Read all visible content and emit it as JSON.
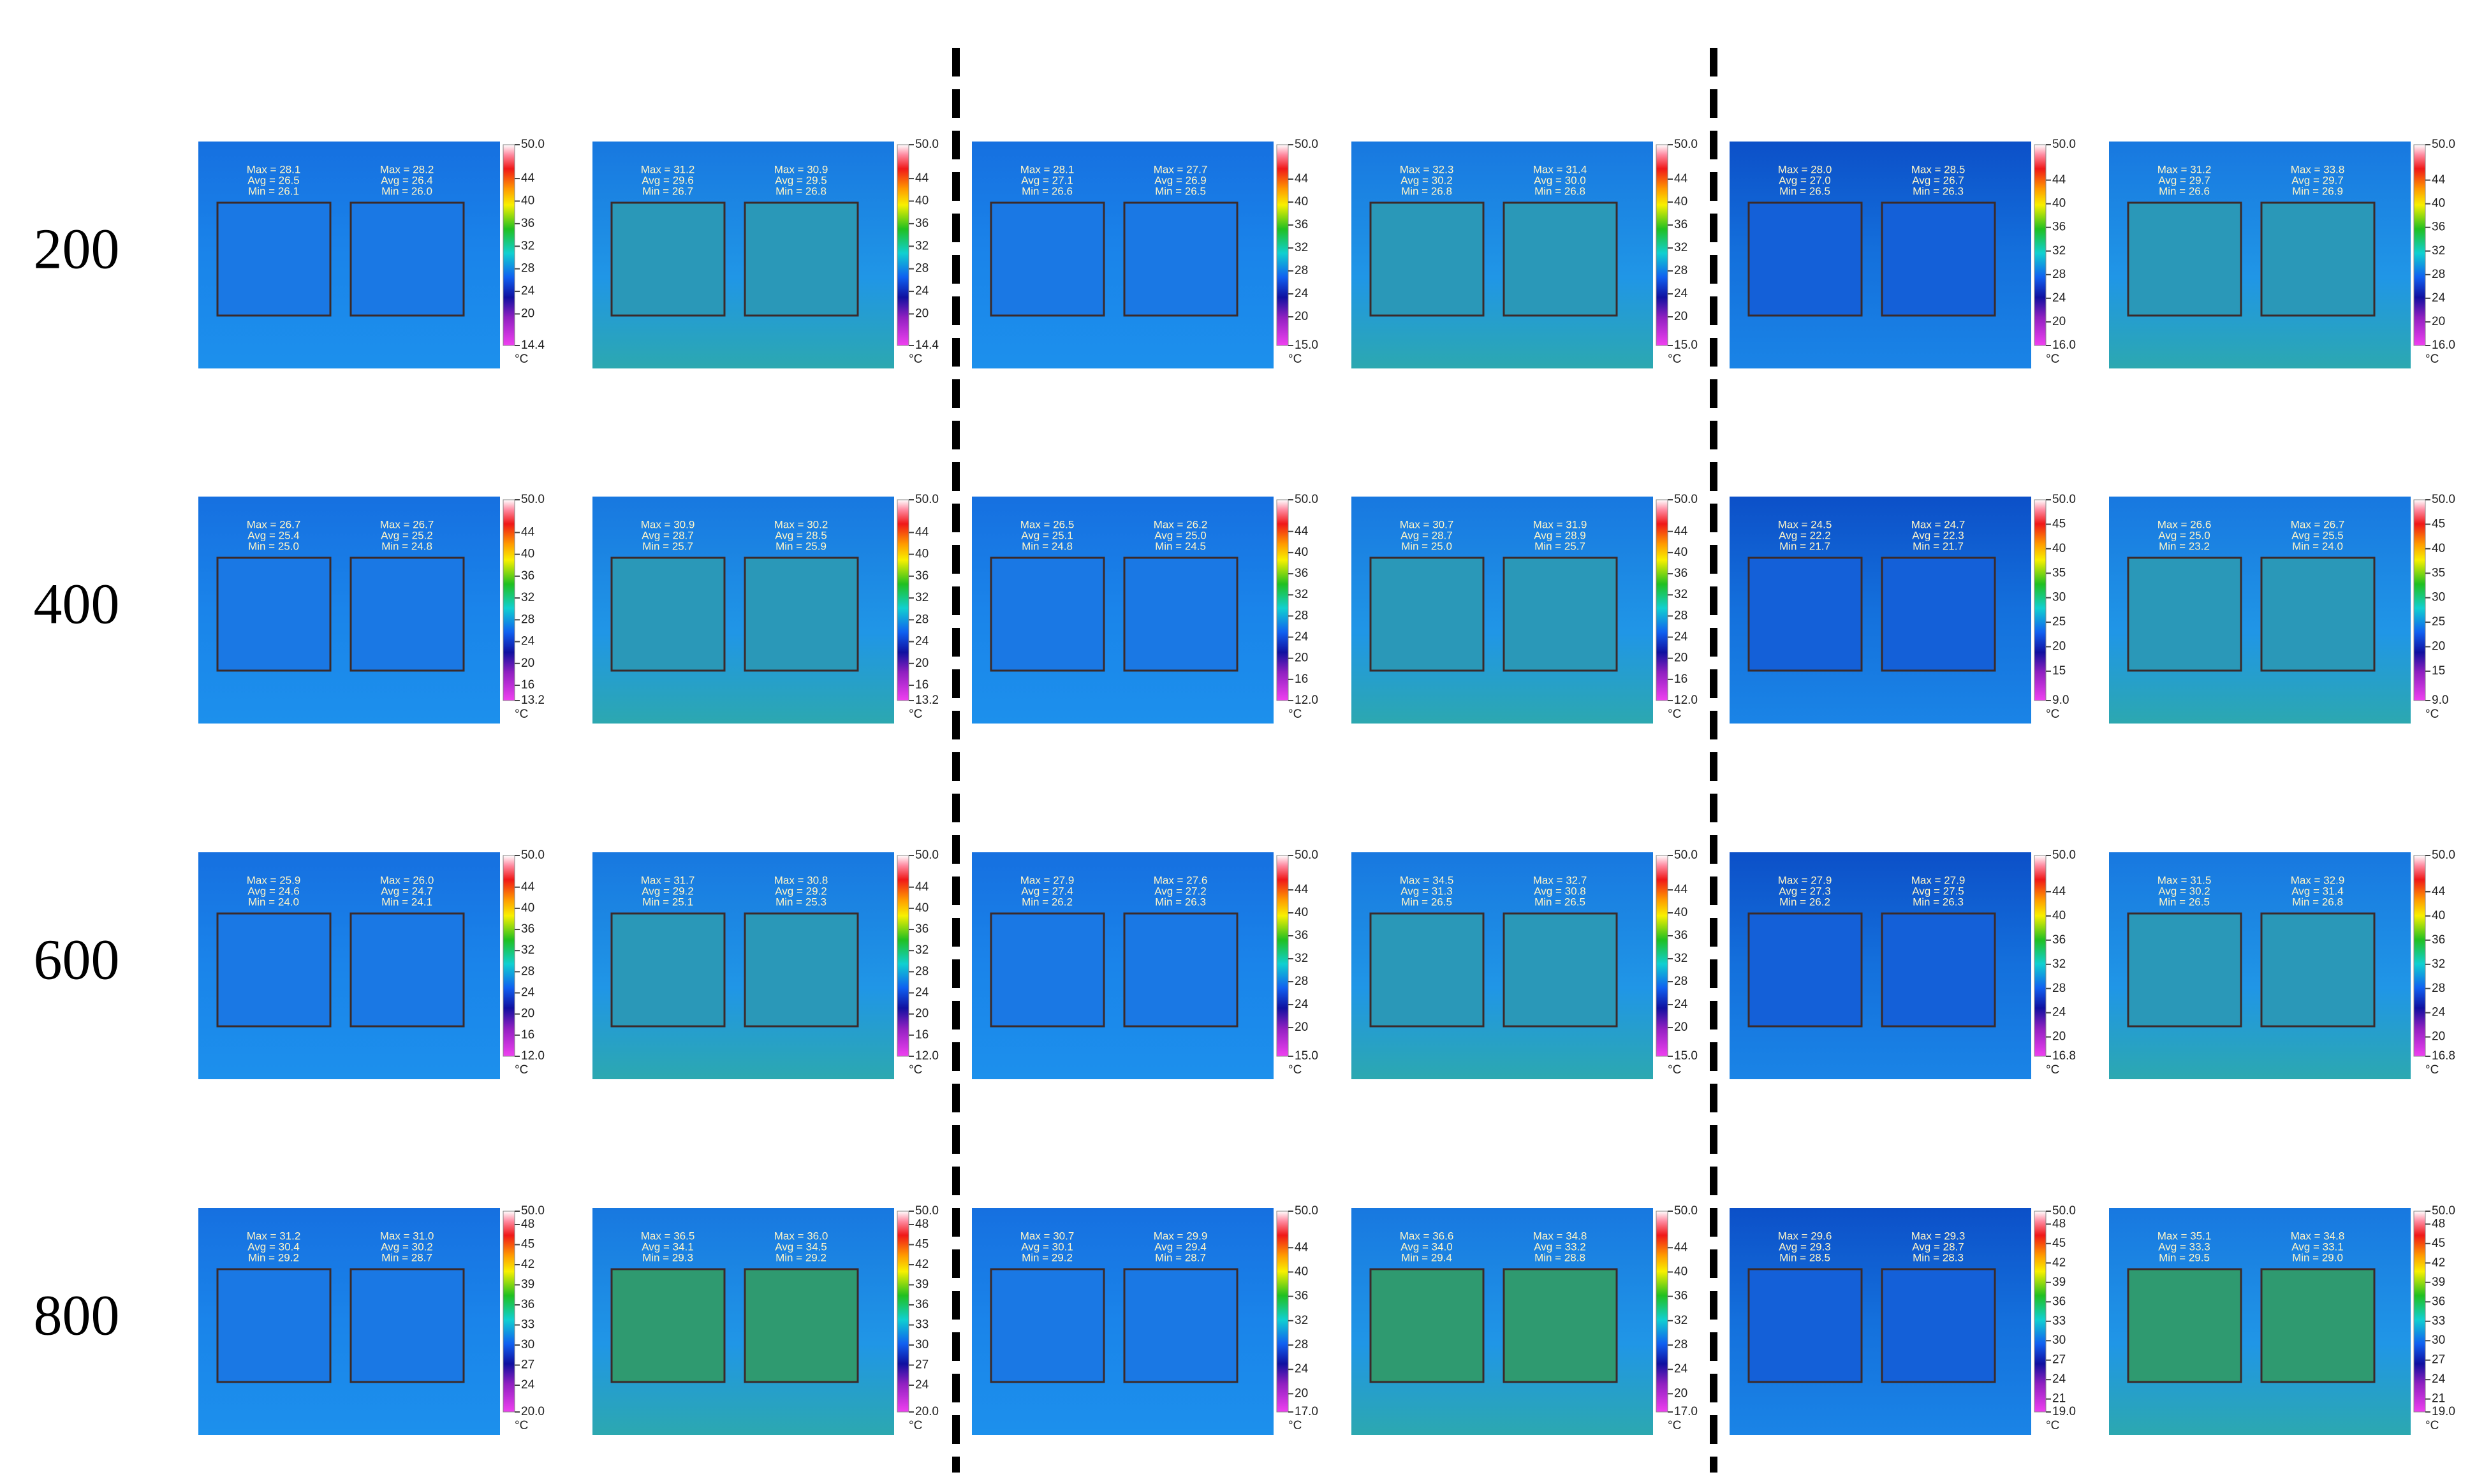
{
  "rows": [
    {
      "label": "200",
      "panels": [
        {
          "boxes": [
            [
              "Max = 28.1",
              "Avg = 26.5",
              "Min = 26.1"
            ],
            [
              "Max = 28.2",
              "Avg = 26.4",
              "Min = 26.0"
            ]
          ],
          "scale": [
            "50.0",
            "44",
            "40",
            "36",
            "32",
            "28",
            "24",
            "20",
            "14.4"
          ],
          "unit": "°C"
        },
        {
          "boxes": [
            [
              "Max = 31.2",
              "Avg = 29.6",
              "Min = 26.7"
            ],
            [
              "Max = 30.9",
              "Avg = 29.5",
              "Min = 26.8"
            ]
          ],
          "scale": [
            "50.0",
            "44",
            "40",
            "36",
            "32",
            "28",
            "24",
            "20",
            "14.4"
          ],
          "unit": "°C"
        },
        {
          "boxes": [
            [
              "Max = 28.1",
              "Avg = 27.1",
              "Min = 26.6"
            ],
            [
              "Max = 27.7",
              "Avg = 26.9",
              "Min = 26.5"
            ]
          ],
          "scale": [
            "50.0",
            "44",
            "40",
            "36",
            "32",
            "28",
            "24",
            "20",
            "15.0"
          ],
          "unit": "°C"
        },
        {
          "boxes": [
            [
              "Max = 32.3",
              "Avg = 30.2",
              "Min = 26.8"
            ],
            [
              "Max = 31.4",
              "Avg = 30.0",
              "Min = 26.8"
            ]
          ],
          "scale": [
            "50.0",
            "44",
            "40",
            "36",
            "32",
            "28",
            "24",
            "20",
            "15.0"
          ],
          "unit": "°C"
        },
        {
          "boxes": [
            [
              "Max = 28.0",
              "Avg = 27.0",
              "Min = 26.5"
            ],
            [
              "Max = 28.5",
              "Avg = 26.7",
              "Min = 26.3"
            ]
          ],
          "scale": [
            "50.0",
            "44",
            "40",
            "36",
            "32",
            "28",
            "24",
            "20",
            "16.0"
          ],
          "unit": "°C"
        },
        {
          "boxes": [
            [
              "Max = 31.2",
              "Avg = 29.7",
              "Min = 26.6"
            ],
            [
              "Max = 33.8",
              "Avg = 29.7",
              "Min = 26.9"
            ]
          ],
          "scale": [
            "50.0",
            "44",
            "40",
            "36",
            "32",
            "28",
            "24",
            "20",
            "16.0"
          ],
          "unit": "°C"
        }
      ]
    },
    {
      "label": "400",
      "panels": [
        {
          "boxes": [
            [
              "Max = 26.7",
              "Avg = 25.4",
              "Min = 25.0"
            ],
            [
              "Max = 26.7",
              "Avg = 25.2",
              "Min = 24.8"
            ]
          ],
          "scale": [
            "50.0",
            "44",
            "40",
            "36",
            "32",
            "28",
            "24",
            "20",
            "16",
            "13.2"
          ],
          "unit": "°C"
        },
        {
          "boxes": [
            [
              "Max = 30.9",
              "Avg = 28.7",
              "Min = 25.7"
            ],
            [
              "Max = 30.2",
              "Avg = 28.5",
              "Min = 25.9"
            ]
          ],
          "scale": [
            "50.0",
            "44",
            "40",
            "36",
            "32",
            "28",
            "24",
            "20",
            "16",
            "13.2"
          ],
          "unit": "°C"
        },
        {
          "boxes": [
            [
              "Max = 26.5",
              "Avg = 25.1",
              "Min = 24.8"
            ],
            [
              "Max = 26.2",
              "Avg = 25.0",
              "Min = 24.5"
            ]
          ],
          "scale": [
            "50.0",
            "44",
            "40",
            "36",
            "32",
            "28",
            "24",
            "20",
            "16",
            "12.0"
          ],
          "unit": "°C"
        },
        {
          "boxes": [
            [
              "Max = 30.7",
              "Avg = 28.7",
              "Min = 25.0"
            ],
            [
              "Max = 31.9",
              "Avg = 28.9",
              "Min = 25.7"
            ]
          ],
          "scale": [
            "50.0",
            "44",
            "40",
            "36",
            "32",
            "28",
            "24",
            "20",
            "16",
            "12.0"
          ],
          "unit": "°C"
        },
        {
          "boxes": [
            [
              "Max = 24.5",
              "Avg = 22.2",
              "Min = 21.7"
            ],
            [
              "Max = 24.7",
              "Avg = 22.3",
              "Min = 21.7"
            ]
          ],
          "scale": [
            "50.0",
            "45",
            "40",
            "35",
            "30",
            "25",
            "20",
            "15",
            "9.0"
          ],
          "unit": "°C"
        },
        {
          "boxes": [
            [
              "Max = 26.6",
              "Avg = 25.0",
              "Min = 23.2"
            ],
            [
              "Max = 26.7",
              "Avg = 25.5",
              "Min = 24.0"
            ]
          ],
          "scale": [
            "50.0",
            "45",
            "40",
            "35",
            "30",
            "25",
            "20",
            "15",
            "9.0"
          ],
          "unit": "°C"
        }
      ]
    },
    {
      "label": "600",
      "panels": [
        {
          "boxes": [
            [
              "Max = 25.9",
              "Avg = 24.6",
              "Min = 24.0"
            ],
            [
              "Max = 26.0",
              "Avg = 24.7",
              "Min = 24.1"
            ]
          ],
          "scale": [
            "50.0",
            "44",
            "40",
            "36",
            "32",
            "28",
            "24",
            "20",
            "16",
            "12.0"
          ],
          "unit": "°C"
        },
        {
          "boxes": [
            [
              "Max = 31.7",
              "Avg = 29.2",
              "Min = 25.1"
            ],
            [
              "Max = 30.8",
              "Avg = 29.2",
              "Min = 25.3"
            ]
          ],
          "scale": [
            "50.0",
            "44",
            "40",
            "36",
            "32",
            "28",
            "24",
            "20",
            "16",
            "12.0"
          ],
          "unit": "°C"
        },
        {
          "boxes": [
            [
              "Max = 27.9",
              "Avg = 27.4",
              "Min = 26.2"
            ],
            [
              "Max = 27.6",
              "Avg = 27.2",
              "Min = 26.3"
            ]
          ],
          "scale": [
            "50.0",
            "44",
            "40",
            "36",
            "32",
            "28",
            "24",
            "20",
            "15.0"
          ],
          "unit": "°C"
        },
        {
          "boxes": [
            [
              "Max = 34.5",
              "Avg = 31.3",
              "Min = 26.5"
            ],
            [
              "Max = 32.7",
              "Avg = 30.8",
              "Min = 26.5"
            ]
          ],
          "scale": [
            "50.0",
            "44",
            "40",
            "36",
            "32",
            "28",
            "24",
            "20",
            "15.0"
          ],
          "unit": "°C"
        },
        {
          "boxes": [
            [
              "Max = 27.9",
              "Avg = 27.3",
              "Min = 26.2"
            ],
            [
              "Max = 27.9",
              "Avg = 27.5",
              "Min = 26.3"
            ]
          ],
          "scale": [
            "50.0",
            "44",
            "40",
            "36",
            "32",
            "28",
            "24",
            "20",
            "16.8"
          ],
          "unit": "°C"
        },
        {
          "boxes": [
            [
              "Max = 31.5",
              "Avg = 30.2",
              "Min = 26.5"
            ],
            [
              "Max = 32.9",
              "Avg = 31.4",
              "Min = 26.8"
            ]
          ],
          "scale": [
            "50.0",
            "44",
            "40",
            "36",
            "32",
            "28",
            "24",
            "20",
            "16.8"
          ],
          "unit": "°C"
        }
      ]
    },
    {
      "label": "800",
      "panels": [
        {
          "boxes": [
            [
              "Max = 31.2",
              "Avg = 30.4",
              "Min = 29.2"
            ],
            [
              "Max = 31.0",
              "Avg = 30.2",
              "Min = 28.7"
            ]
          ],
          "scale": [
            "50.0",
            "48",
            "45",
            "42",
            "39",
            "36",
            "33",
            "30",
            "27",
            "24",
            "20.0"
          ],
          "unit": "°C"
        },
        {
          "boxes": [
            [
              "Max = 36.5",
              "Avg = 34.1",
              "Min = 29.3"
            ],
            [
              "Max = 36.0",
              "Avg = 34.5",
              "Min = 29.2"
            ]
          ],
          "scale": [
            "50.0",
            "48",
            "45",
            "42",
            "39",
            "36",
            "33",
            "30",
            "27",
            "24",
            "20.0"
          ],
          "unit": "°C"
        },
        {
          "boxes": [
            [
              "Max = 30.7",
              "Avg = 30.1",
              "Min = 29.2"
            ],
            [
              "Max = 29.9",
              "Avg = 29.4",
              "Min = 28.7"
            ]
          ],
          "scale": [
            "50.0",
            "44",
            "40",
            "36",
            "32",
            "28",
            "24",
            "20",
            "17.0"
          ],
          "unit": "°C"
        },
        {
          "boxes": [
            [
              "Max = 36.6",
              "Avg = 34.0",
              "Min = 29.4"
            ],
            [
              "Max = 34.8",
              "Avg = 33.2",
              "Min = 28.8"
            ]
          ],
          "scale": [
            "50.0",
            "44",
            "40",
            "36",
            "32",
            "28",
            "24",
            "20",
            "17.0"
          ],
          "unit": "°C"
        },
        {
          "boxes": [
            [
              "Max = 29.6",
              "Avg = 29.3",
              "Min = 28.5"
            ],
            [
              "Max = 29.3",
              "Avg = 28.7",
              "Min = 28.3"
            ]
          ],
          "scale": [
            "50.0",
            "48",
            "45",
            "42",
            "39",
            "36",
            "33",
            "30",
            "27",
            "24",
            "21",
            "19.0"
          ],
          "unit": "°C"
        },
        {
          "boxes": [
            [
              "Max = 35.1",
              "Avg = 33.3",
              "Min = 29.5"
            ],
            [
              "Max = 34.8",
              "Avg = 33.1",
              "Min = 29.0"
            ]
          ],
          "scale": [
            "50.0",
            "48",
            "45",
            "42",
            "39",
            "36",
            "33",
            "30",
            "27",
            "24",
            "21",
            "19.0"
          ],
          "unit": "°C"
        }
      ]
    }
  ]
}
